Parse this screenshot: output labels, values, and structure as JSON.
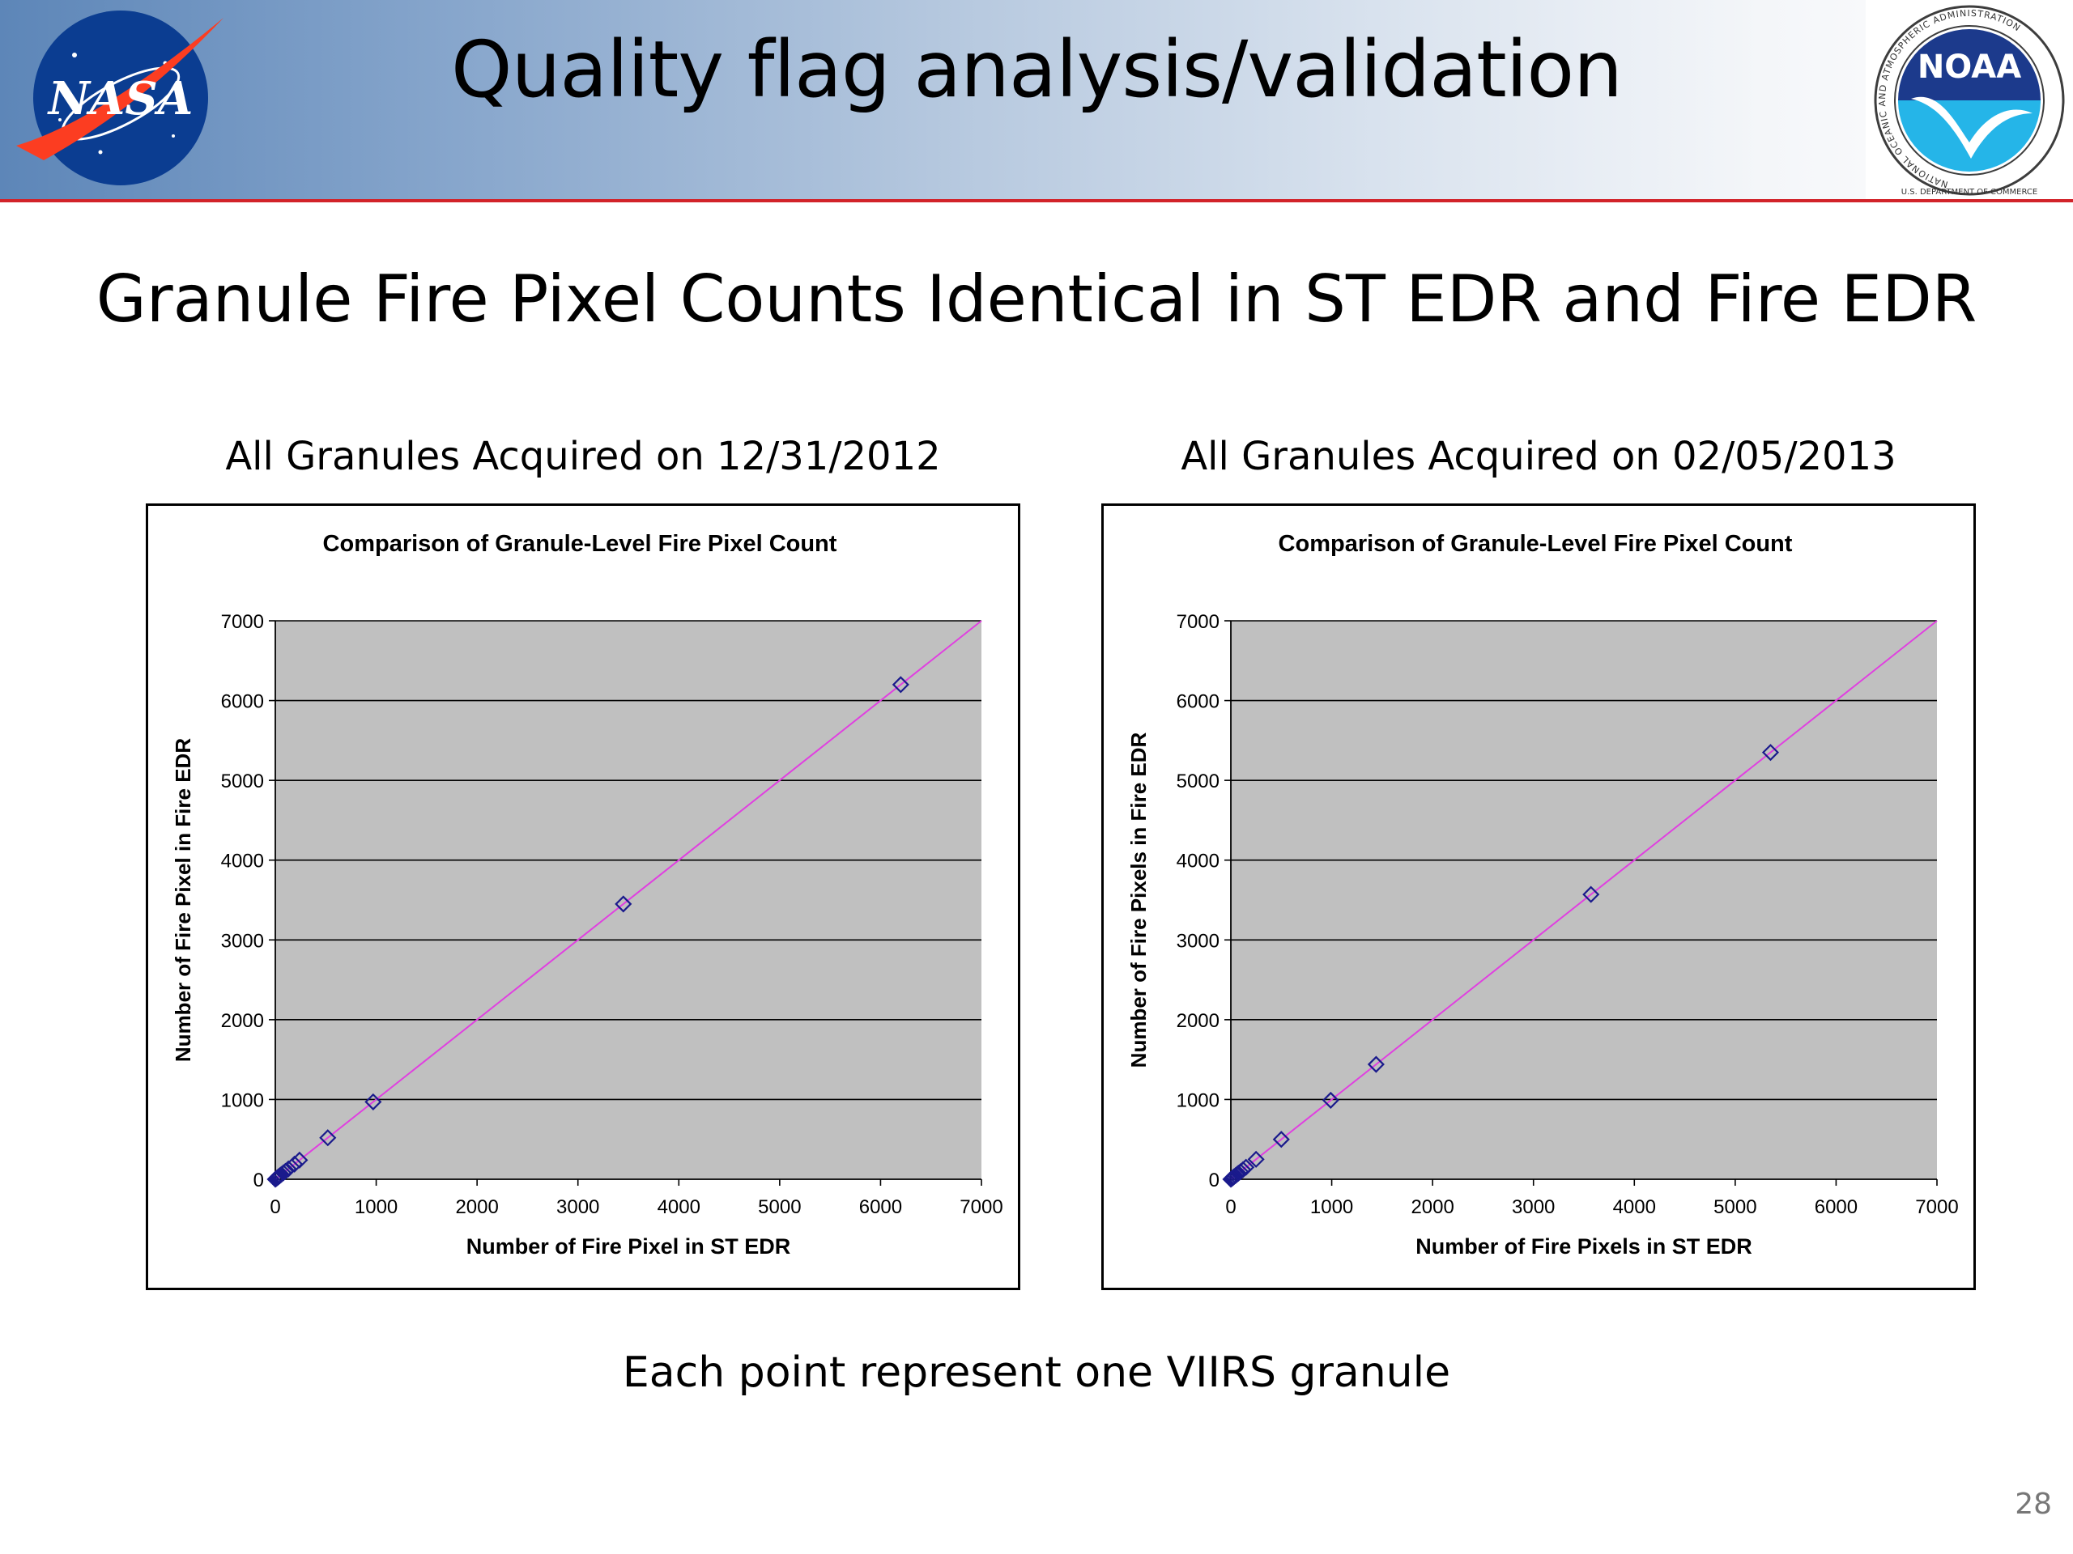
{
  "slide": {
    "title": "Quality flag analysis/validation",
    "subtitle": "Granule Fire Pixel Counts Identical in ST EDR and Fire EDR",
    "footer_note": "Each point represent one VIIRS granule",
    "page_number": "28",
    "header_accent_color": "#d2232a"
  },
  "logos": {
    "nasa": {
      "text": "NASA",
      "icon": "nasa-meatball-logo"
    },
    "noaa": {
      "text": "NOAA",
      "ring_text": "NATIONAL OCEANIC AND ATMOSPHERIC ADMINISTRATION",
      "bottom_text": "U.S. DEPARTMENT OF COMMERCE",
      "icon": "noaa-seagull-logo"
    }
  },
  "panels": [
    {
      "caption": "All Granules Acquired on 12/31/2012"
    },
    {
      "caption": "All Granules Acquired on 02/05/2013"
    }
  ],
  "chart_data": [
    {
      "type": "scatter",
      "title": "Comparison of Granule-Level Fire Pixel Count",
      "xlabel": "Number of Fire Pixel in ST EDR",
      "ylabel": "Number of Fire Pixel in Fire EDR",
      "xlim": [
        0,
        7000
      ],
      "ylim": [
        0,
        7000
      ],
      "xticks": [
        "0",
        "1000",
        "2000",
        "3000",
        "4000",
        "5000",
        "6000",
        "7000"
      ],
      "yticks": [
        "0",
        "1000",
        "2000",
        "3000",
        "4000",
        "5000",
        "6000",
        "7000"
      ],
      "grid": "horizontal",
      "legend": "none",
      "plot_background": "#c0c0c0",
      "marker": "diamond",
      "marker_color": "#1a1a8c",
      "reference_line": {
        "from": [
          0,
          0
        ],
        "to": [
          7000,
          7000
        ],
        "color": "#e040e0"
      },
      "points": [
        {
          "x": 0,
          "y": 0
        },
        {
          "x": 8,
          "y": 8
        },
        {
          "x": 15,
          "y": 15
        },
        {
          "x": 25,
          "y": 25
        },
        {
          "x": 35,
          "y": 35
        },
        {
          "x": 45,
          "y": 45
        },
        {
          "x": 60,
          "y": 60
        },
        {
          "x": 80,
          "y": 80
        },
        {
          "x": 100,
          "y": 100
        },
        {
          "x": 130,
          "y": 130
        },
        {
          "x": 190,
          "y": 190
        },
        {
          "x": 240,
          "y": 240
        },
        {
          "x": 520,
          "y": 520
        },
        {
          "x": 970,
          "y": 970
        },
        {
          "x": 3450,
          "y": 3450
        },
        {
          "x": 6200,
          "y": 6200
        }
      ]
    },
    {
      "type": "scatter",
      "title": "Comparison of Granule-Level Fire Pixel Count",
      "xlabel": "Number of Fire Pixels in ST EDR",
      "ylabel": "Number of Fire Pixels in Fire EDR",
      "xlim": [
        0,
        7000
      ],
      "ylim": [
        0,
        7000
      ],
      "xticks": [
        "0",
        "1000",
        "2000",
        "3000",
        "4000",
        "5000",
        "6000",
        "7000"
      ],
      "yticks": [
        "0",
        "1000",
        "2000",
        "3000",
        "4000",
        "5000",
        "6000",
        "7000"
      ],
      "grid": "horizontal",
      "legend": "none",
      "plot_background": "#c0c0c0",
      "marker": "diamond",
      "marker_color": "#1a1a8c",
      "reference_line": {
        "from": [
          0,
          0
        ],
        "to": [
          7000,
          7000
        ],
        "color": "#e040e0"
      },
      "points": [
        {
          "x": 0,
          "y": 0
        },
        {
          "x": 10,
          "y": 10
        },
        {
          "x": 20,
          "y": 20
        },
        {
          "x": 30,
          "y": 30
        },
        {
          "x": 45,
          "y": 45
        },
        {
          "x": 60,
          "y": 60
        },
        {
          "x": 75,
          "y": 75
        },
        {
          "x": 95,
          "y": 95
        },
        {
          "x": 120,
          "y": 120
        },
        {
          "x": 150,
          "y": 150
        },
        {
          "x": 250,
          "y": 250
        },
        {
          "x": 500,
          "y": 500
        },
        {
          "x": 990,
          "y": 990
        },
        {
          "x": 1440,
          "y": 1440
        },
        {
          "x": 3570,
          "y": 3570
        },
        {
          "x": 5350,
          "y": 5350
        }
      ]
    }
  ]
}
